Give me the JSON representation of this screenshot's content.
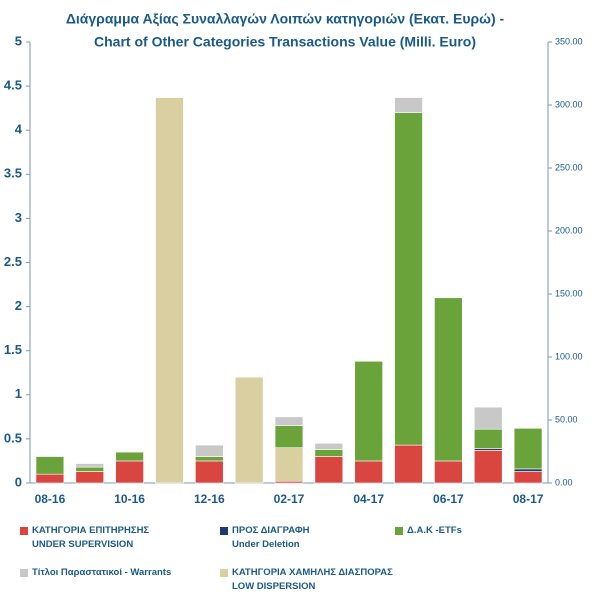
{
  "chart_data": {
    "type": "bar",
    "stacked": true,
    "title": "Διάγραμμα Αξίας Συναλλαγών Λοιπών κατηγοριών (Εκατ.  Ευρώ) -",
    "subtitle": "Chart of Other Categories Transactions Value (Milli. Euro)",
    "categories": [
      "08-16",
      null,
      "10-16",
      null,
      "12-16",
      null,
      "02-17",
      null,
      "04-17",
      null,
      "06-17",
      null,
      "08-17"
    ],
    "series": [
      {
        "name": "ΚΑΤΗΓΟΡΙΑ ΕΠΙΤΗΡΗΣΗΣ\nUNDER SUPERVISION",
        "color": "#d9453f",
        "values": [
          0.1,
          0.13,
          0.25,
          0,
          0.25,
          0,
          0.02,
          0.3,
          0.25,
          0.43,
          0.25,
          0.37,
          0.13
        ]
      },
      {
        "name": "ΠΡΟΣ ΔΙΑΓΡΑΦΗ\nUnder Deletion",
        "color": "#1f3a6e",
        "values": [
          0,
          0,
          0,
          0,
          0,
          0,
          0,
          0,
          0,
          0,
          0,
          0.02,
          0.03
        ]
      },
      {
        "name": "Δ.Α.Κ -ETFs",
        "color": "#6aa33a",
        "values": [
          0.2,
          0.05,
          0.1,
          0,
          0.05,
          0,
          0.25,
          0.08,
          1.13,
          3.77,
          1.85,
          0.22,
          0.46
        ]
      },
      {
        "name": "Τίτλοι Παραστατικοί - Warrants",
        "color": "#c8c8c8",
        "values": [
          0.01,
          0.04,
          0,
          0,
          0.13,
          0,
          0.1,
          0.07,
          0,
          0.17,
          0,
          0.25,
          0
        ]
      },
      {
        "name": "ΚΑΤΗΓΟΡΙΑ ΧΑΜΗΛΗΣ ΔΙΑΣΠΟΡΑΣ\nLOW DISPERSION",
        "color": "#d9cfa0",
        "values": [
          0,
          0,
          0,
          4.37,
          0,
          1.2,
          0.38,
          0,
          0,
          0,
          0,
          0,
          0
        ]
      }
    ],
    "ylim": [
      0,
      5
    ],
    "yticks": [
      0,
      0.5,
      1,
      1.5,
      2,
      2.5,
      3,
      3.5,
      4,
      4.5,
      5
    ],
    "y2lim": [
      0,
      350
    ],
    "y2ticks": [
      {
        "value": 0,
        "label": "0.00"
      },
      {
        "value": 50,
        "label": "50.00"
      },
      {
        "value": 100,
        "label": "100.00"
      },
      {
        "value": 150,
        "label": "150.00"
      },
      {
        "value": 200,
        "label": "200.00"
      },
      {
        "value": 250,
        "label": "250.00"
      },
      {
        "value": 300,
        "label": "300.00"
      },
      {
        "value": 350,
        "label": "350.00"
      }
    ],
    "grid": false
  }
}
